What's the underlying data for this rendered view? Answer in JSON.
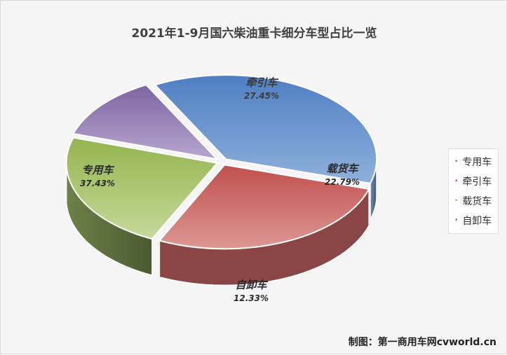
{
  "chart_data": {
    "type": "pie",
    "title": "2021年1-9月国六柴油重卡细分车型占比一览",
    "categories": [
      "专用车",
      "牵引车",
      "载货车",
      "自卸车"
    ],
    "values": [
      37.43,
      27.45,
      22.79,
      12.33
    ],
    "value_labels": [
      "37.43%",
      "27.45%",
      "22.79%",
      "12.33%"
    ],
    "colors": [
      "#6f99cf",
      "#d26e6b",
      "#a9c46d",
      "#9a86b9"
    ],
    "legend_position": "right",
    "style": "3d-exploded"
  },
  "watermark": "制图：第一商用车网cvworld.cn"
}
